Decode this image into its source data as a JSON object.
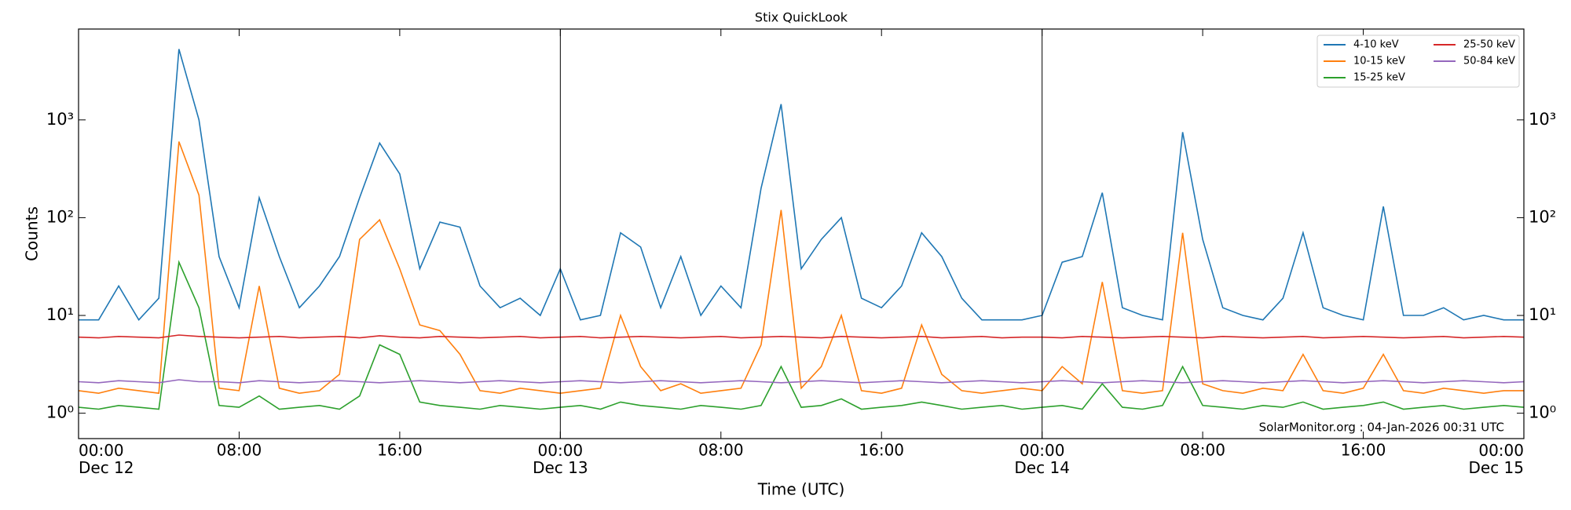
{
  "chart_data": {
    "type": "line",
    "title": "Stix QuickLook",
    "x_label": "Time (UTC)",
    "y_label": "Counts",
    "annotation": "SolarMonitor.org : 04-Jan-2026 00:31 UTC",
    "log_y": true,
    "legend": "upper right",
    "legend_columns": 2,
    "xlim": [
      0,
      72
    ],
    "ylim": [
      0.55,
      8500
    ],
    "xticks": [
      {
        "value": 0,
        "label": "00:00\nDec 12"
      },
      {
        "value": 8,
        "label": "08:00"
      },
      {
        "value": 16,
        "label": "16:00"
      },
      {
        "value": 24,
        "label": "00:00\nDec 13"
      },
      {
        "value": 32,
        "label": "08:00"
      },
      {
        "value": 40,
        "label": "16:00"
      },
      {
        "value": 48,
        "label": "00:00\nDec 14"
      },
      {
        "value": 56,
        "label": "08:00"
      },
      {
        "value": 64,
        "label": "16:00"
      },
      {
        "value": 72,
        "label": "00:00\nDec 15"
      }
    ],
    "day_lines": [
      24,
      48
    ],
    "yticks": [
      {
        "value": 1,
        "label": "10⁰"
      },
      {
        "value": 10,
        "label": "10¹"
      },
      {
        "value": 100,
        "label": "10²"
      },
      {
        "value": 1000,
        "label": "10³"
      }
    ],
    "x": [
      0,
      1,
      2,
      3,
      4,
      5,
      6,
      7,
      8,
      9,
      10,
      11,
      12,
      13,
      14,
      15,
      16,
      17,
      18,
      19,
      20,
      21,
      22,
      23,
      24,
      25,
      26,
      27,
      28,
      29,
      30,
      31,
      32,
      33,
      34,
      35,
      36,
      37,
      38,
      39,
      40,
      41,
      42,
      43,
      44,
      45,
      46,
      47,
      48,
      49,
      50,
      51,
      52,
      53,
      54,
      55,
      56,
      57,
      58,
      59,
      60,
      61,
      62,
      63,
      64,
      65,
      66,
      67,
      68,
      69,
      70,
      71,
      72
    ],
    "series": [
      {
        "name": "4-10 keV",
        "color": "#1f77b4",
        "values": [
          9,
          9,
          20,
          9,
          15,
          5300,
          1000,
          40,
          12,
          160,
          40,
          12,
          20,
          40,
          160,
          580,
          280,
          30,
          90,
          80,
          20,
          12,
          15,
          10,
          30,
          9,
          10,
          70,
          50,
          12,
          40,
          10,
          20,
          12,
          200,
          1450,
          30,
          60,
          100,
          15,
          12,
          20,
          70,
          40,
          15,
          9,
          9,
          9,
          10,
          35,
          40,
          180,
          12,
          10,
          9,
          750,
          60,
          12,
          10,
          9,
          15,
          70,
          12,
          10,
          9,
          130,
          10,
          10,
          12,
          9,
          10,
          9,
          9
        ]
      },
      {
        "name": "10-15 keV",
        "color": "#ff7f0e",
        "values": [
          1.7,
          1.6,
          1.8,
          1.7,
          1.6,
          600,
          170,
          1.8,
          1.7,
          20,
          1.8,
          1.6,
          1.7,
          2.5,
          60,
          95,
          30,
          8,
          7,
          4,
          1.7,
          1.6,
          1.8,
          1.7,
          1.6,
          1.7,
          1.8,
          10,
          3,
          1.7,
          2,
          1.6,
          1.7,
          1.8,
          5,
          120,
          1.8,
          3,
          10,
          1.7,
          1.6,
          1.8,
          8,
          2.5,
          1.7,
          1.6,
          1.7,
          1.8,
          1.7,
          3,
          2,
          22,
          1.7,
          1.6,
          1.7,
          70,
          2,
          1.7,
          1.6,
          1.8,
          1.7,
          4,
          1.7,
          1.6,
          1.8,
          4,
          1.7,
          1.6,
          1.8,
          1.7,
          1.6,
          1.7,
          1.7
        ]
      },
      {
        "name": "15-25 keV",
        "color": "#2ca02c",
        "values": [
          1.15,
          1.1,
          1.2,
          1.15,
          1.1,
          35,
          12,
          1.2,
          1.15,
          1.5,
          1.1,
          1.15,
          1.2,
          1.1,
          1.5,
          5,
          4,
          1.3,
          1.2,
          1.15,
          1.1,
          1.2,
          1.15,
          1.1,
          1.15,
          1.2,
          1.1,
          1.3,
          1.2,
          1.15,
          1.1,
          1.2,
          1.15,
          1.1,
          1.2,
          3,
          1.15,
          1.2,
          1.4,
          1.1,
          1.15,
          1.2,
          1.3,
          1.2,
          1.1,
          1.15,
          1.2,
          1.1,
          1.15,
          1.2,
          1.1,
          2,
          1.15,
          1.1,
          1.2,
          3,
          1.2,
          1.15,
          1.1,
          1.2,
          1.15,
          1.3,
          1.1,
          1.15,
          1.2,
          1.3,
          1.1,
          1.15,
          1.2,
          1.1,
          1.15,
          1.2,
          1.15
        ]
      },
      {
        "name": "25-50 keV",
        "color": "#d62728",
        "values": [
          6,
          5.9,
          6.1,
          6,
          5.9,
          6.3,
          6.1,
          6,
          5.9,
          6,
          6.1,
          5.9,
          6,
          6.1,
          5.9,
          6.2,
          6,
          5.9,
          6.1,
          6,
          5.9,
          6,
          6.1,
          5.9,
          6,
          6.1,
          5.9,
          6,
          6.1,
          6,
          5.9,
          6,
          6.1,
          5.9,
          6,
          6.1,
          6,
          5.9,
          6.1,
          6,
          5.9,
          6,
          6.1,
          5.9,
          6,
          6.1,
          5.9,
          6,
          6,
          5.9,
          6.1,
          6,
          5.9,
          6,
          6.1,
          6,
          5.9,
          6.1,
          6,
          5.9,
          6,
          6.1,
          5.9,
          6,
          6.1,
          6,
          5.9,
          6,
          6.1,
          5.9,
          6,
          6.1,
          6
        ]
      },
      {
        "name": "50-84 keV",
        "color": "#9467bd",
        "values": [
          2.1,
          2.05,
          2.15,
          2.1,
          2.05,
          2.2,
          2.1,
          2.1,
          2.05,
          2.15,
          2.1,
          2.05,
          2.1,
          2.15,
          2.1,
          2.05,
          2.1,
          2.15,
          2.1,
          2.05,
          2.1,
          2.15,
          2.1,
          2.05,
          2.1,
          2.15,
          2.1,
          2.05,
          2.1,
          2.15,
          2.1,
          2.05,
          2.1,
          2.15,
          2.1,
          2.05,
          2.1,
          2.15,
          2.1,
          2.05,
          2.1,
          2.15,
          2.1,
          2.05,
          2.1,
          2.15,
          2.1,
          2.05,
          2.1,
          2.15,
          2.1,
          2.05,
          2.1,
          2.15,
          2.1,
          2.05,
          2.1,
          2.15,
          2.1,
          2.05,
          2.1,
          2.15,
          2.1,
          2.05,
          2.1,
          2.15,
          2.1,
          2.05,
          2.1,
          2.15,
          2.1,
          2.05,
          2.1
        ]
      }
    ]
  }
}
